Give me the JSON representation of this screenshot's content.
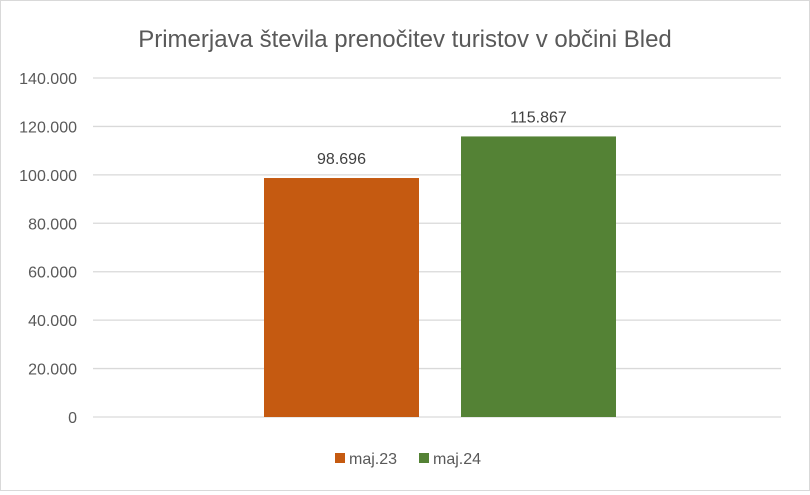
{
  "chart_data": {
    "type": "bar",
    "title": "Primerjava števila prenočitev turistov v občini Bled",
    "xlabel": "",
    "ylabel": "",
    "categories": [
      ""
    ],
    "series": [
      {
        "name": "maj.23",
        "values": [
          98696
        ],
        "label": "98.696",
        "color": "#C55A11"
      },
      {
        "name": "maj.24",
        "values": [
          115867
        ],
        "label": "115.867",
        "color": "#548235"
      }
    ],
    "ylim": [
      0,
      140000
    ],
    "yticks": [
      0,
      20000,
      40000,
      60000,
      80000,
      100000,
      120000,
      140000
    ],
    "ytick_labels": [
      "0",
      "20.000",
      "40.000",
      "60.000",
      "80.000",
      "100.000",
      "120.000",
      "140.000"
    ],
    "grid": true,
    "legend_position": "bottom"
  }
}
